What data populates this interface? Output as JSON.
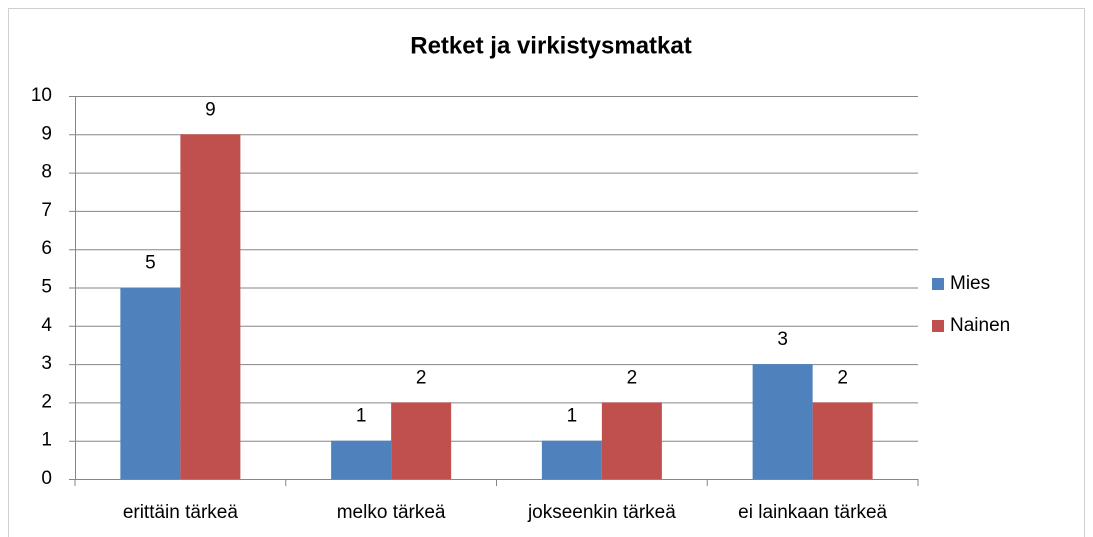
{
  "chart_data": {
    "type": "bar",
    "title": "Retket ja virkistysmatkat",
    "categories": [
      "erittäin tärkeä",
      "melko tärkeä",
      "jokseenkin tärkeä",
      "ei lainkaan tärkeä"
    ],
    "series": [
      {
        "name": "Mies",
        "color": "#4f81bd",
        "values": [
          5,
          1,
          1,
          3
        ]
      },
      {
        "name": "Nainen",
        "color": "#c0504d",
        "values": [
          9,
          2,
          2,
          2
        ]
      }
    ],
    "ylim": [
      0,
      10
    ],
    "yticks": [
      0,
      1,
      2,
      3,
      4,
      5,
      6,
      7,
      8,
      9,
      10
    ],
    "grid": true,
    "legend": "right"
  }
}
